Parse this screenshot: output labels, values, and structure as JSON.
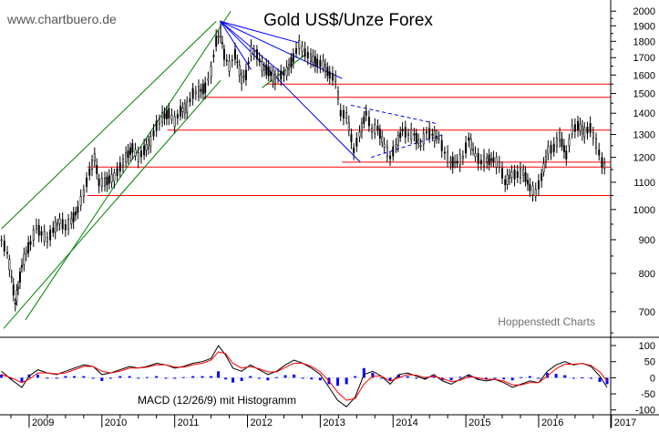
{
  "watermark": "www.chartbuero.de",
  "source_label": "Hoppenstedt Charts",
  "chart_data": [
    {
      "type": "candlestick",
      "title": "Gold US$/Unze Forex",
      "y_scale": "log",
      "ylim": [
        640,
        2040
      ],
      "y_ticks": [
        700,
        800,
        900,
        1000,
        1100,
        1200,
        1300,
        1400,
        1500,
        1600,
        1700,
        1800,
        1900,
        2000
      ],
      "x_range": [
        2008.6,
        2016.99
      ],
      "x_ticks": [
        2009,
        2010,
        2011,
        2012,
        2013,
        2014,
        2015,
        2016,
        2017
      ],
      "grid": false,
      "series": [
        {
          "values": [
            [
              2008.62,
              900
            ],
            [
              2008.7,
              860
            ],
            [
              2008.76,
              790
            ],
            [
              2008.81,
              720
            ],
            [
              2008.85,
              760
            ],
            [
              2008.9,
              820
            ],
            [
              2008.96,
              860
            ],
            [
              2009.02,
              890
            ],
            [
              2009.1,
              940
            ],
            [
              2009.17,
              920
            ],
            [
              2009.25,
              900
            ],
            [
              2009.33,
              930
            ],
            [
              2009.42,
              960
            ],
            [
              2009.5,
              940
            ],
            [
              2009.58,
              960
            ],
            [
              2009.67,
              1000
            ],
            [
              2009.75,
              1060
            ],
            [
              2009.83,
              1140
            ],
            [
              2009.9,
              1200
            ],
            [
              2009.96,
              1100
            ],
            [
              2010.04,
              1100
            ],
            [
              2010.1,
              1110
            ],
            [
              2010.17,
              1120
            ],
            [
              2010.25,
              1160
            ],
            [
              2010.33,
              1200
            ],
            [
              2010.42,
              1240
            ],
            [
              2010.5,
              1200
            ],
            [
              2010.58,
              1230
            ],
            [
              2010.67,
              1270
            ],
            [
              2010.75,
              1340
            ],
            [
              2010.83,
              1380
            ],
            [
              2010.92,
              1400
            ],
            [
              2011.0,
              1360
            ],
            [
              2011.08,
              1410
            ],
            [
              2011.17,
              1430
            ],
            [
              2011.25,
              1500
            ],
            [
              2011.33,
              1510
            ],
            [
              2011.42,
              1530
            ],
            [
              2011.5,
              1620
            ],
            [
              2011.57,
              1800
            ],
            [
              2011.63,
              1860
            ],
            [
              2011.68,
              1720
            ],
            [
              2011.75,
              1650
            ],
            [
              2011.83,
              1720
            ],
            [
              2011.92,
              1580
            ],
            [
              2011.98,
              1600
            ],
            [
              2012.05,
              1740
            ],
            [
              2012.13,
              1720
            ],
            [
              2012.2,
              1650
            ],
            [
              2012.29,
              1620
            ],
            [
              2012.38,
              1580
            ],
            [
              2012.46,
              1600
            ],
            [
              2012.54,
              1620
            ],
            [
              2012.63,
              1700
            ],
            [
              2012.71,
              1780
            ],
            [
              2012.79,
              1730
            ],
            [
              2012.87,
              1700
            ],
            [
              2012.96,
              1670
            ],
            [
              2013.04,
              1660
            ],
            [
              2013.13,
              1600
            ],
            [
              2013.21,
              1580
            ],
            [
              2013.28,
              1400
            ],
            [
              2013.36,
              1390
            ],
            [
              2013.46,
              1230
            ],
            [
              2013.54,
              1300
            ],
            [
              2013.63,
              1400
            ],
            [
              2013.71,
              1320
            ],
            [
              2013.79,
              1330
            ],
            [
              2013.88,
              1250
            ],
            [
              2013.96,
              1200
            ],
            [
              2014.04,
              1250
            ],
            [
              2014.13,
              1320
            ],
            [
              2014.21,
              1300
            ],
            [
              2014.29,
              1300
            ],
            [
              2014.38,
              1250
            ],
            [
              2014.46,
              1310
            ],
            [
              2014.54,
              1300
            ],
            [
              2014.63,
              1280
            ],
            [
              2014.71,
              1220
            ],
            [
              2014.79,
              1180
            ],
            [
              2014.88,
              1180
            ],
            [
              2014.96,
              1200
            ],
            [
              2015.04,
              1280
            ],
            [
              2015.13,
              1210
            ],
            [
              2015.21,
              1180
            ],
            [
              2015.29,
              1190
            ],
            [
              2015.38,
              1190
            ],
            [
              2015.46,
              1170
            ],
            [
              2015.54,
              1100
            ],
            [
              2015.63,
              1130
            ],
            [
              2015.71,
              1130
            ],
            [
              2015.79,
              1140
            ],
            [
              2015.88,
              1080
            ],
            [
              2015.96,
              1060
            ],
            [
              2016.04,
              1120
            ],
            [
              2016.13,
              1230
            ],
            [
              2016.21,
              1240
            ],
            [
              2016.29,
              1290
            ],
            [
              2016.38,
              1210
            ],
            [
              2016.46,
              1320
            ],
            [
              2016.54,
              1340
            ],
            [
              2016.63,
              1310
            ],
            [
              2016.71,
              1330
            ],
            [
              2016.79,
              1260
            ],
            [
              2016.87,
              1180
            ],
            [
              2016.94,
              1150
            ]
          ]
        }
      ],
      "trendlines": [
        {
          "from": [
            2008.95,
            680
          ],
          "to": [
            2011.77,
            2000
          ],
          "color": "#008000"
        },
        {
          "from": [
            2008.62,
            935
          ],
          "to": [
            2011.57,
            1930
          ],
          "color": "#008000"
        },
        {
          "from": [
            2008.65,
            660
          ],
          "to": [
            2011.63,
            1570
          ],
          "color": "#008000"
        },
        {
          "from": [
            2011.63,
            1930
          ],
          "to": [
            2012.05,
            1630
          ],
          "color": "#0000ff"
        },
        {
          "from": [
            2011.63,
            1930
          ],
          "to": [
            2012.5,
            1600
          ],
          "color": "#0000ff"
        },
        {
          "from": [
            2011.63,
            1930
          ],
          "to": [
            2012.71,
            1790
          ],
          "color": "#0000ff"
        },
        {
          "from": [
            2011.63,
            1930
          ],
          "to": [
            2013.3,
            1580
          ],
          "color": "#0000ff"
        },
        {
          "from": [
            2011.63,
            1930
          ],
          "to": [
            2013.55,
            1180
          ],
          "color": "#0000ff"
        },
        {
          "from": [
            2012.2,
            1530
          ],
          "to": [
            2012.8,
            1720
          ],
          "color": "#008000"
        },
        {
          "from": [
            2013.42,
            1440
          ],
          "to": [
            2014.6,
            1350
          ],
          "color": "#0000ff",
          "dashed": true
        },
        {
          "from": [
            2013.7,
            1200
          ],
          "to": [
            2014.7,
            1300
          ],
          "color": "#0000ff",
          "dashed": true
        }
      ],
      "hlines": [
        {
          "value": 1550,
          "from": 2012.25,
          "to": 2016.99,
          "color": "#ff0000"
        },
        {
          "value": 1480,
          "from": 2011.4,
          "to": 2016.99,
          "color": "#ff0000"
        },
        {
          "value": 1320,
          "from": 2010.9,
          "to": 2016.99,
          "color": "#ff0000"
        },
        {
          "value": 1180,
          "from": 2013.3,
          "to": 2016.99,
          "color": "#ff0000"
        },
        {
          "value": 1160,
          "from": 2009.8,
          "to": 2016.99,
          "color": "#ff0000"
        },
        {
          "value": 1050,
          "from": 2009.8,
          "to": 2016.99,
          "color": "#ff0000"
        }
      ]
    },
    {
      "type": "line",
      "title": "MACD (12/26/9) mit Histogramm",
      "ylim": [
        -115,
        120
      ],
      "y_ticks": [
        -100,
        -50,
        0,
        50,
        100
      ],
      "x": [
        2008.62,
        2008.75,
        2008.9,
        2009.0,
        2009.12,
        2009.25,
        2009.38,
        2009.5,
        2009.62,
        2009.75,
        2009.88,
        2010.0,
        2010.12,
        2010.25,
        2010.38,
        2010.5,
        2010.62,
        2010.75,
        2010.88,
        2011.0,
        2011.12,
        2011.25,
        2011.38,
        2011.5,
        2011.6,
        2011.7,
        2011.8,
        2011.92,
        2012.04,
        2012.16,
        2012.28,
        2012.4,
        2012.52,
        2012.64,
        2012.76,
        2012.88,
        2013.0,
        2013.12,
        2013.24,
        2013.36,
        2013.48,
        2013.6,
        2013.72,
        2013.84,
        2013.96,
        2014.08,
        2014.2,
        2014.32,
        2014.44,
        2014.56,
        2014.68,
        2014.8,
        2014.92,
        2015.04,
        2015.16,
        2015.28,
        2015.4,
        2015.52,
        2015.64,
        2015.76,
        2015.88,
        2016.0,
        2016.12,
        2016.24,
        2016.36,
        2016.48,
        2016.6,
        2016.72,
        2016.84,
        2016.94
      ],
      "series": [
        {
          "color": "#000000",
          "values": [
            20,
            -5,
            -30,
            5,
            25,
            15,
            10,
            20,
            30,
            40,
            35,
            10,
            15,
            25,
            35,
            30,
            35,
            45,
            40,
            30,
            35,
            45,
            50,
            60,
            100,
            70,
            30,
            20,
            40,
            25,
            10,
            20,
            40,
            55,
            45,
            30,
            10,
            -30,
            -70,
            -90,
            -60,
            10,
            20,
            5,
            -20,
            10,
            15,
            5,
            -5,
            10,
            -10,
            -20,
            -5,
            10,
            -5,
            -10,
            -5,
            -15,
            -30,
            -20,
            -10,
            -15,
            20,
            40,
            50,
            40,
            45,
            35,
            5,
            -30
          ]
        },
        {
          "color": "#ff0000",
          "values": [
            10,
            0,
            -15,
            -5,
            15,
            15,
            12,
            15,
            25,
            35,
            35,
            20,
            15,
            20,
            30,
            30,
            33,
            40,
            40,
            33,
            33,
            40,
            45,
            55,
            80,
            75,
            45,
            30,
            35,
            28,
            18,
            18,
            32,
            45,
            45,
            35,
            18,
            -10,
            -45,
            -70,
            -65,
            -20,
            5,
            5,
            -10,
            0,
            10,
            8,
            0,
            5,
            -3,
            -12,
            -8,
            3,
            0,
            -5,
            -5,
            -10,
            -22,
            -22,
            -15,
            -15,
            5,
            28,
            42,
            42,
            44,
            38,
            18,
            -10
          ]
        },
        {
          "color": "#0000ff",
          "values": [
            10,
            -5,
            -15,
            10,
            10,
            0,
            -2,
            5,
            5,
            5,
            0,
            -10,
            0,
            5,
            5,
            0,
            2,
            5,
            0,
            -3,
            2,
            5,
            5,
            5,
            20,
            -5,
            -15,
            -10,
            5,
            -3,
            -8,
            2,
            8,
            10,
            0,
            -5,
            -8,
            -20,
            -25,
            -20,
            5,
            30,
            15,
            0,
            -10,
            10,
            5,
            -3,
            -5,
            5,
            -7,
            -8,
            3,
            7,
            -5,
            -5,
            0,
            -5,
            -8,
            2,
            5,
            0,
            15,
            12,
            8,
            -2,
            1,
            -3,
            -13,
            -20
          ]
        }
      ]
    }
  ]
}
